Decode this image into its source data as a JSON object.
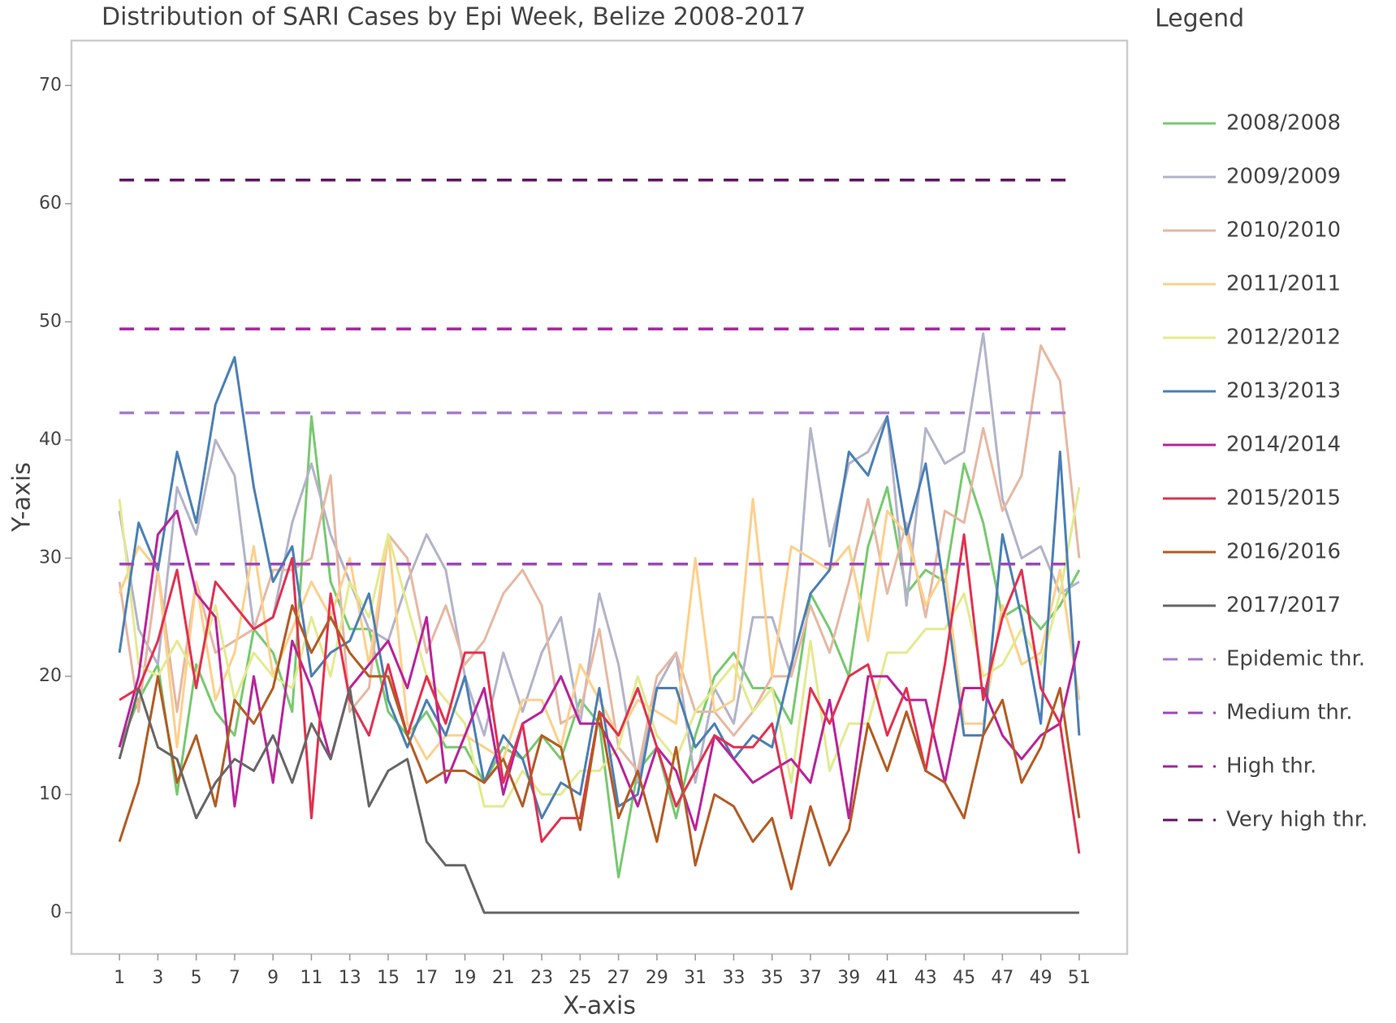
{
  "chart_data": {
    "type": "line",
    "title": "Distribution of SARI Cases by Epi Week, Belize 2008-2017",
    "xlabel": "X-axis",
    "ylabel": "Y-axis",
    "legend_title": "Legend",
    "x": [
      1,
      2,
      3,
      4,
      5,
      6,
      7,
      8,
      9,
      10,
      11,
      12,
      13,
      14,
      15,
      16,
      17,
      18,
      19,
      20,
      21,
      22,
      23,
      24,
      25,
      26,
      27,
      28,
      29,
      30,
      31,
      32,
      33,
      34,
      35,
      36,
      37,
      38,
      39,
      40,
      41,
      42,
      43,
      44,
      45,
      46,
      47,
      48,
      49,
      50,
      51
    ],
    "xlim": [
      -1.5,
      53.5
    ],
    "xticks": [
      1,
      3,
      5,
      7,
      9,
      11,
      13,
      15,
      17,
      19,
      21,
      23,
      25,
      27,
      29,
      31,
      33,
      35,
      37,
      39,
      41,
      43,
      45,
      47,
      49,
      51
    ],
    "ylim": [
      -3.5,
      73.8
    ],
    "yticks": [
      0,
      10,
      20,
      30,
      40,
      50,
      60,
      70
    ],
    "series": [
      {
        "name": "2008/2008",
        "color": "#77c96f",
        "values": [
          14,
          18,
          21,
          10,
          21,
          17,
          15,
          24,
          22,
          17,
          42,
          28,
          24,
          24,
          17,
          15,
          17,
          14,
          14,
          11,
          14,
          13,
          15,
          13,
          18,
          16,
          3,
          12,
          14,
          8,
          15,
          20,
          22,
          19,
          19,
          16,
          27,
          24,
          20,
          31,
          36,
          27,
          29,
          28,
          38,
          33,
          25,
          26,
          24,
          26,
          29
        ]
      },
      {
        "name": "2009/2009",
        "color": "#b3b3c9",
        "values": [
          34,
          24,
          21,
          36,
          32,
          40,
          37,
          24,
          25,
          33,
          38,
          32,
          28,
          24,
          23,
          28,
          32,
          29,
          20,
          15,
          22,
          17,
          22,
          25,
          16,
          27,
          21,
          11,
          19,
          22,
          11,
          19,
          16,
          25,
          25,
          20,
          41,
          31,
          38,
          39,
          42,
          26,
          41,
          38,
          39,
          49,
          35,
          30,
          31,
          27,
          28
        ]
      },
      {
        "name": "2010/2010",
        "color": "#e6b8a2",
        "values": [
          28,
          17,
          29,
          17,
          28,
          22,
          23,
          24,
          29,
          29,
          30,
          37,
          17,
          19,
          32,
          30,
          22,
          26,
          21,
          23,
          27,
          29,
          26,
          16,
          17,
          24,
          14,
          12,
          20,
          22,
          17,
          17,
          15,
          17,
          20,
          20,
          26,
          22,
          28,
          35,
          27,
          33,
          25,
          34,
          33,
          41,
          34,
          37,
          48,
          45,
          30
        ]
      },
      {
        "name": "2011/2011",
        "color": "#fdd08a",
        "values": [
          27,
          31,
          29,
          14,
          28,
          18,
          22,
          31,
          20,
          24,
          28,
          25,
          30,
          21,
          32,
          16,
          13,
          15,
          15,
          14,
          13,
          18,
          18,
          14,
          21,
          18,
          15,
          18,
          17,
          16,
          30,
          17,
          18,
          35,
          20,
          31,
          30,
          29,
          31,
          23,
          34,
          32,
          26,
          29,
          16,
          16,
          26,
          21,
          22,
          29,
          18
        ]
      },
      {
        "name": "2012/2012",
        "color": "#e3ea8f",
        "values": [
          35,
          21,
          20,
          23,
          20,
          26,
          18,
          22,
          20,
          19,
          25,
          20,
          28,
          25,
          32,
          26,
          20,
          18,
          16,
          9,
          9,
          12,
          10,
          10,
          12,
          12,
          14,
          20,
          15,
          13,
          17,
          19,
          21,
          17,
          19,
          11,
          23,
          12,
          16,
          16,
          22,
          22,
          24,
          24,
          27,
          20,
          21,
          24,
          21,
          27,
          36
        ]
      },
      {
        "name": "2013/2013",
        "color": "#4a7fb5",
        "values": [
          22,
          33,
          29,
          39,
          33,
          43,
          47,
          36,
          28,
          31,
          20,
          22,
          23,
          27,
          18,
          14,
          18,
          15,
          20,
          11,
          15,
          13,
          8,
          11,
          10,
          19,
          9,
          10,
          19,
          19,
          14,
          16,
          13,
          15,
          14,
          21,
          27,
          29,
          39,
          37,
          42,
          32,
          38,
          27,
          15,
          15,
          32,
          25,
          16,
          39,
          15
        ]
      },
      {
        "name": "2014/2014",
        "color": "#b8239a",
        "values": [
          14,
          20,
          32,
          34,
          27,
          25,
          9,
          20,
          11,
          23,
          19,
          13,
          19,
          21,
          23,
          19,
          25,
          11,
          15,
          19,
          10,
          16,
          17,
          20,
          16,
          16,
          13,
          9,
          14,
          12,
          7,
          15,
          13,
          11,
          12,
          13,
          11,
          18,
          8,
          20,
          20,
          18,
          18,
          11,
          19,
          19,
          15,
          13,
          15,
          16,
          23
        ]
      },
      {
        "name": "2015/2015",
        "color": "#e2304f",
        "values": [
          18,
          19,
          23,
          29,
          19,
          28,
          26,
          24,
          25,
          30,
          8,
          27,
          18,
          15,
          21,
          15,
          20,
          16,
          22,
          22,
          11,
          16,
          6,
          8,
          8,
          17,
          15,
          19,
          14,
          9,
          12,
          15,
          14,
          14,
          16,
          8,
          19,
          16,
          20,
          21,
          15,
          19,
          12,
          21,
          32,
          18,
          25,
          29,
          19,
          16,
          5
        ]
      },
      {
        "name": "2016/2016",
        "color": "#b35b22",
        "values": [
          6,
          11,
          20,
          11,
          15,
          9,
          18,
          16,
          19,
          26,
          22,
          25,
          22,
          20,
          20,
          15,
          11,
          12,
          12,
          11,
          13,
          9,
          15,
          14,
          7,
          17,
          8,
          12,
          6,
          14,
          4,
          10,
          9,
          6,
          8,
          2,
          9,
          4,
          7,
          16,
          12,
          17,
          12,
          11,
          8,
          15,
          18,
          11,
          14,
          19,
          8
        ]
      },
      {
        "name": "2017/2017",
        "color": "#666666",
        "values": [
          13,
          19,
          14,
          13,
          8,
          11,
          13,
          12,
          15,
          11,
          16,
          13,
          19,
          9,
          12,
          13,
          6,
          4,
          4,
          0,
          0,
          0,
          0,
          0,
          0,
          0,
          0,
          0,
          0,
          0,
          0,
          0,
          0,
          0,
          0,
          0,
          0,
          0,
          0,
          0,
          0,
          0,
          0,
          0,
          0,
          0,
          0,
          0,
          0,
          0,
          0
        ]
      }
    ],
    "thresholds": [
      {
        "name": "Epidemic thr.",
        "color": "#a67cc9",
        "value": 42.3
      },
      {
        "name": "Medium thr.",
        "color": "#9b47b8",
        "value": 29.5
      },
      {
        "name": "High thr.",
        "color": "#a0269a",
        "value": 49.4
      },
      {
        "name": "Very high thr.",
        "color": "#5e1460",
        "value": 62
      }
    ]
  }
}
